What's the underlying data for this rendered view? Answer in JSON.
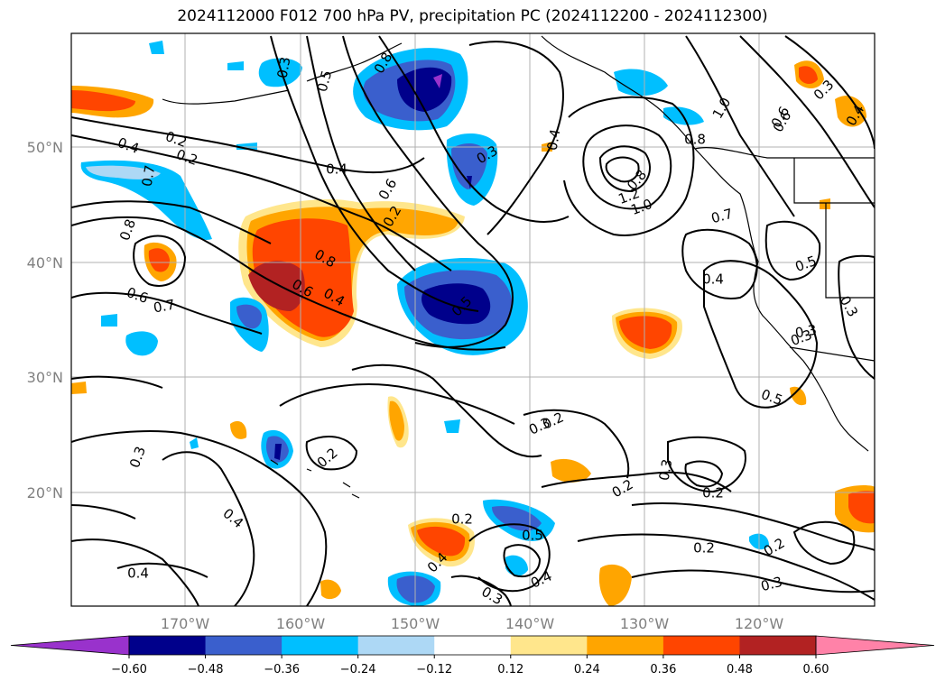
{
  "title": "2024112000 F012 700 hPa PV, precipitation PC (2024112200 - 2024112300)",
  "lat_labels": [
    "50°N",
    "40°N",
    "30°N",
    "20°N"
  ],
  "lon_labels": [
    "170°W",
    "160°W",
    "150°W",
    "140°W",
    "130°W",
    "120°W"
  ],
  "colorbar": {
    "ticks": [
      "−0.60",
      "−0.48",
      "−0.36",
      "−0.24",
      "−0.12",
      "0.12",
      "0.24",
      "0.36",
      "0.48",
      "0.60"
    ],
    "colors": [
      "#9932cc",
      "#00008b",
      "#3a5fcd",
      "#00bfff",
      "#add8f5",
      "#ffffff",
      "#ffe68c",
      "#ffa500",
      "#ff4500",
      "#b22222",
      "#ff82a8"
    ]
  },
  "contour_labels": [
    "0.3",
    "0.5",
    "0.8",
    "0.3",
    "0.4",
    "1.0",
    "0.6",
    "0.3",
    "0.4",
    "0.2",
    "0.2",
    "0.4",
    "0.7",
    "0.8",
    "0.6",
    "0.7",
    "0.6",
    "0.8",
    "0.6",
    "0.4",
    "0.5",
    "0.8",
    "1.2",
    "1.0",
    "0.8",
    "0.7",
    "0.4",
    "0.5",
    "0.3",
    "0.3",
    "0.5",
    "0.2",
    "0.3",
    "0.2",
    "0.2",
    "0.3",
    "0.4",
    "0.2",
    "0.4",
    "0.2",
    "0.4",
    "0.5",
    "0.2",
    "0.2",
    "0.3",
    "0.4",
    "0.3",
    "0.2",
    "0.4",
    "0.3",
    "0.3",
    "0.6"
  ]
}
